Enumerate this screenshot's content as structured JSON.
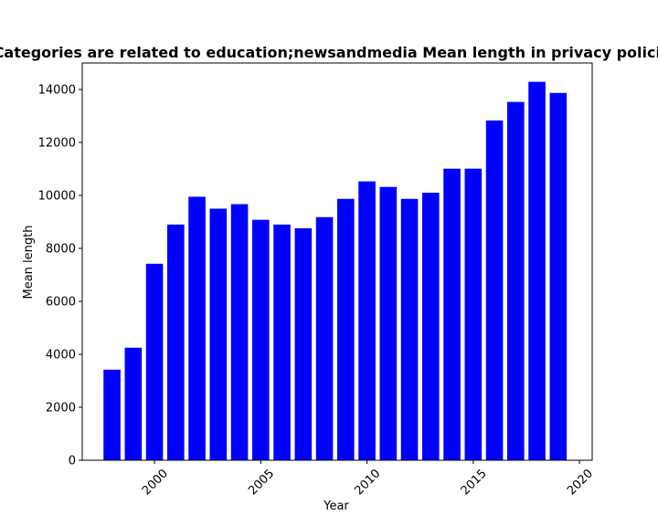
{
  "chart_data": {
    "type": "bar",
    "title": "Categories are related to education;newsandmedia Mean length in privacy policies",
    "xlabel": "Year",
    "ylabel": "Mean length",
    "color": "#0000ff",
    "x": [
      1998,
      1999,
      2000,
      2001,
      2002,
      2003,
      2004,
      2005,
      2006,
      2007,
      2008,
      2009,
      2010,
      2011,
      2012,
      2013,
      2014,
      2015,
      2016,
      2017,
      2018,
      2019
    ],
    "values": [
      3420,
      4250,
      7420,
      8900,
      9950,
      9500,
      9670,
      9080,
      8900,
      8760,
      9180,
      9870,
      10530,
      10320,
      9870,
      10100,
      11010,
      11010,
      12830,
      13530,
      14290,
      13870
    ],
    "xlim": [
      1996.6,
      2020.6
    ],
    "ylim": [
      0,
      15000
    ],
    "xticks": [
      2000,
      2005,
      2010,
      2015,
      2020
    ],
    "yticks": [
      0,
      2000,
      4000,
      6000,
      8000,
      10000,
      12000,
      14000
    ],
    "bar_width": 0.8
  }
}
